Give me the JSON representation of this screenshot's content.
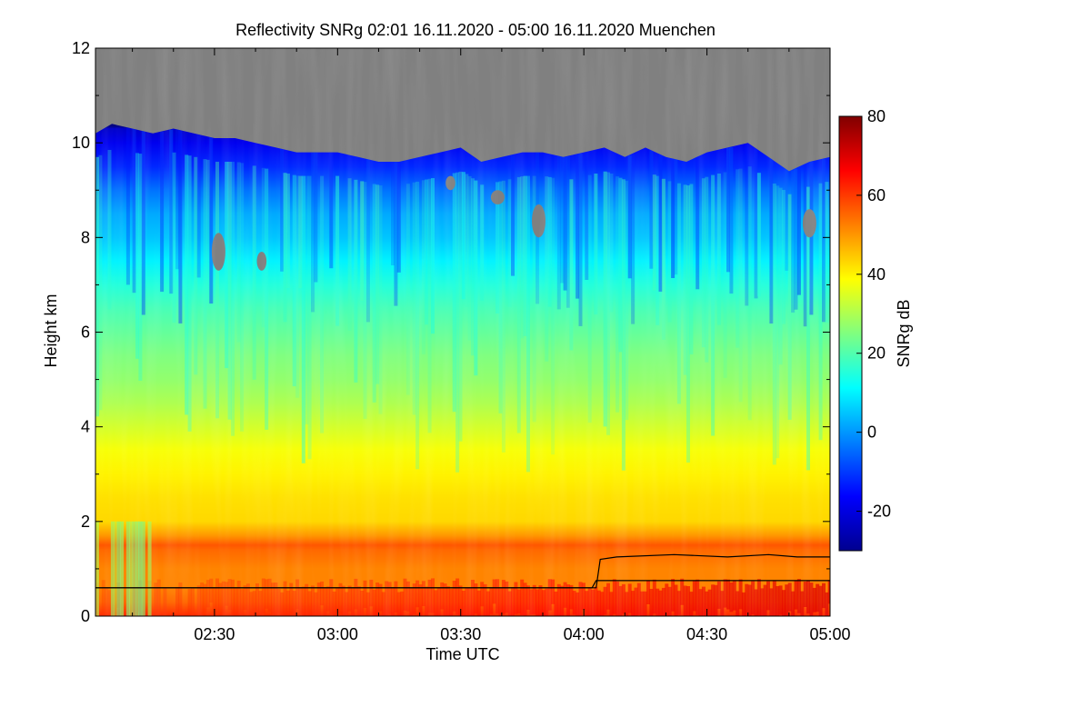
{
  "chart_data": {
    "type": "heatmap",
    "title": "Reflectivity SNRg   02:01 16.11.2020 - 05:00 16.11.2020 Muenchen",
    "xlabel": "Time UTC",
    "ylabel": "Height km",
    "xlim": [
      "02:01",
      "05:00"
    ],
    "xlim_minutes": [
      121,
      300
    ],
    "ylim": [
      0,
      12
    ],
    "x_ticks": [
      {
        "label": "02:30",
        "minutes": 150
      },
      {
        "label": "03:00",
        "minutes": 180
      },
      {
        "label": "03:30",
        "minutes": 210
      },
      {
        "label": "04:00",
        "minutes": 240
      },
      {
        "label": "04:30",
        "minutes": 270
      },
      {
        "label": "05:00",
        "minutes": 300
      }
    ],
    "y_ticks": [
      "0",
      "2",
      "4",
      "6",
      "8",
      "10",
      "12"
    ],
    "colorbar": {
      "label": "SNRg dB",
      "range": [
        -30,
        80
      ],
      "ticks": [
        "-20",
        "0",
        "20",
        "40",
        "60",
        "80"
      ],
      "colormap": "jet",
      "no_signal_color": "#808080"
    },
    "echo_top_km": [
      [
        121,
        10.2
      ],
      [
        125,
        10.4
      ],
      [
        130,
        10.3
      ],
      [
        135,
        10.2
      ],
      [
        140,
        10.3
      ],
      [
        145,
        10.2
      ],
      [
        150,
        10.1
      ],
      [
        155,
        10.1
      ],
      [
        160,
        10.0
      ],
      [
        165,
        9.9
      ],
      [
        170,
        9.8
      ],
      [
        175,
        9.8
      ],
      [
        180,
        9.8
      ],
      [
        185,
        9.7
      ],
      [
        190,
        9.6
      ],
      [
        195,
        9.6
      ],
      [
        200,
        9.7
      ],
      [
        205,
        9.8
      ],
      [
        210,
        9.9
      ],
      [
        215,
        9.6
      ],
      [
        220,
        9.7
      ],
      [
        225,
        9.8
      ],
      [
        230,
        9.8
      ],
      [
        235,
        9.7
      ],
      [
        240,
        9.8
      ],
      [
        245,
        9.9
      ],
      [
        250,
        9.7
      ],
      [
        255,
        9.9
      ],
      [
        260,
        9.7
      ],
      [
        265,
        9.6
      ],
      [
        270,
        9.8
      ],
      [
        275,
        9.9
      ],
      [
        280,
        10.0
      ],
      [
        285,
        9.7
      ],
      [
        290,
        9.4
      ],
      [
        295,
        9.6
      ],
      [
        300,
        9.7
      ]
    ],
    "profile_snr_db": [
      [
        0.0,
        62
      ],
      [
        0.3,
        55
      ],
      [
        0.6,
        52
      ],
      [
        1.0,
        52
      ],
      [
        1.4,
        55
      ],
      [
        1.5,
        57
      ],
      [
        1.7,
        50
      ],
      [
        2.0,
        43
      ],
      [
        2.5,
        42
      ],
      [
        3.0,
        40
      ],
      [
        3.5,
        38
      ],
      [
        4.0,
        34
      ],
      [
        4.5,
        30
      ],
      [
        5.0,
        27
      ],
      [
        5.5,
        25
      ],
      [
        6.0,
        22
      ],
      [
        6.5,
        19
      ],
      [
        7.0,
        15
      ],
      [
        7.5,
        10
      ],
      [
        8.0,
        5
      ],
      [
        8.5,
        2
      ],
      [
        9.0,
        -4
      ],
      [
        9.5,
        -12
      ],
      [
        10.0,
        -18
      ],
      [
        10.3,
        -22
      ]
    ],
    "series": [
      {
        "points": [
          [
            121,
            0.6
          ],
          [
            242,
            0.6
          ],
          [
            243,
            0.75
          ],
          [
            300,
            0.75
          ]
        ]
      },
      {
        "points": [
          [
            121,
            0.6
          ],
          [
            243,
            0.6
          ],
          [
            244,
            1.2
          ],
          [
            248,
            1.25
          ],
          [
            262,
            1.3
          ],
          [
            275,
            1.25
          ],
          [
            285,
            1.3
          ],
          [
            292,
            1.25
          ],
          [
            300,
            1.25
          ]
        ]
      }
    ],
    "data_gaps_km": [
      [
        150,
        152,
        7.3,
        8.1
      ],
      [
        161,
        162,
        7.3,
        7.7
      ],
      [
        228,
        230,
        8.0,
        8.7
      ],
      [
        294,
        296,
        8.0,
        8.6
      ],
      [
        218,
        220,
        8.7,
        9.0
      ],
      [
        207,
        208,
        9.0,
        9.3
      ]
    ]
  }
}
